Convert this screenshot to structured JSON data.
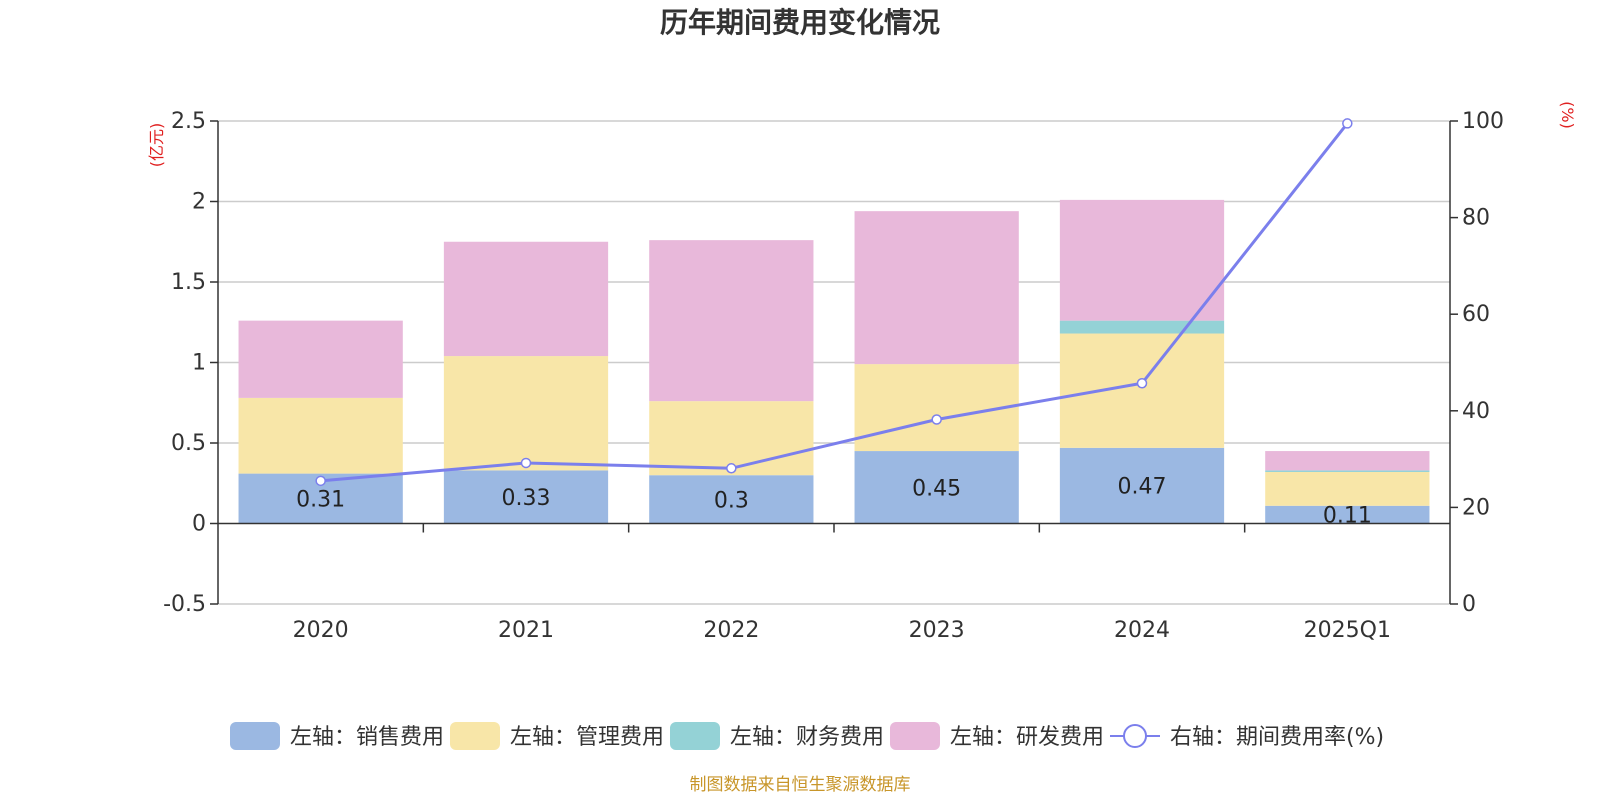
{
  "chart_data": {
    "type": "bar",
    "title": "历年期间费用变化情况",
    "categories": [
      "2020",
      "2021",
      "2022",
      "2023",
      "2024",
      "2025Q1"
    ],
    "left_axis": {
      "unit": "(亿元)",
      "ylim": [
        -0.5,
        2.5
      ],
      "ticks": [
        -0.5,
        0,
        0.5,
        1,
        1.5,
        2,
        2.5
      ],
      "tick_labels": [
        "-0.5",
        "0",
        "0.5",
        "1",
        "1.5",
        "2",
        "2.5"
      ]
    },
    "right_axis": {
      "unit": "(%)",
      "ylim": [
        0,
        100
      ],
      "ticks": [
        0,
        20,
        40,
        60,
        80,
        100
      ],
      "tick_labels": [
        "0",
        "20",
        "40",
        "60",
        "80",
        "100"
      ]
    },
    "series": [
      {
        "name": "左轴：销售费用",
        "type": "bar",
        "axis": "left",
        "color": "#9bb8e2",
        "values": [
          0.31,
          0.33,
          0.3,
          0.45,
          0.47,
          0.11
        ],
        "labels": [
          "0.31",
          "0.33",
          "0.3",
          "0.45",
          "0.47",
          "0.11"
        ]
      },
      {
        "name": "左轴：管理费用",
        "type": "bar",
        "axis": "left",
        "color": "#f8e6a8",
        "values": [
          0.47,
          0.71,
          0.46,
          0.54,
          0.71,
          0.21
        ]
      },
      {
        "name": "左轴：财务费用",
        "type": "bar",
        "axis": "left",
        "color": "#94d2d6",
        "values": [
          0.0,
          0.0,
          0.0,
          0.0,
          0.08,
          0.01
        ]
      },
      {
        "name": "左轴：研发费用",
        "type": "bar",
        "axis": "left",
        "color": "#e8b8da",
        "values": [
          0.48,
          0.71,
          1.0,
          0.95,
          0.75,
          0.12
        ]
      },
      {
        "name": "右轴：期间费用率(%)",
        "type": "line",
        "axis": "right",
        "color": "#7b7fec",
        "values": [
          25.5,
          29.2,
          28.1,
          38.2,
          45.7,
          99.5
        ]
      }
    ],
    "grid": true,
    "legend_position": "bottom"
  },
  "source": "制图数据来自恒生聚源数据库"
}
